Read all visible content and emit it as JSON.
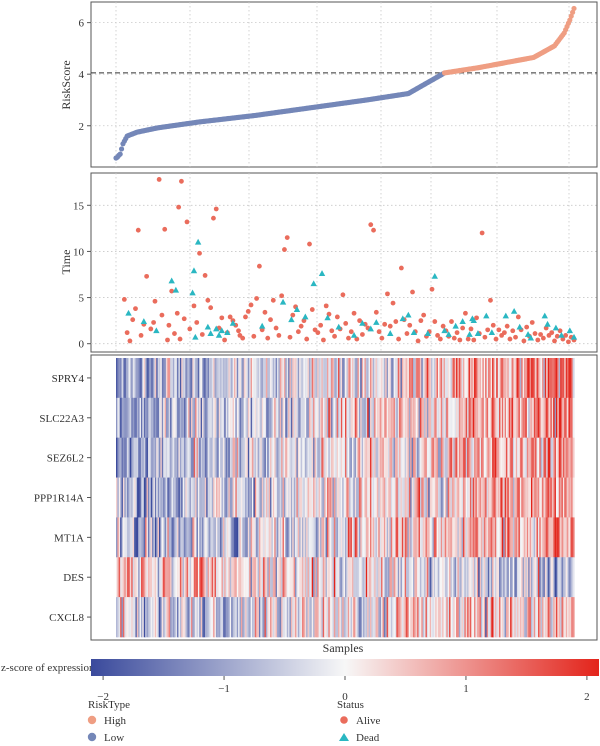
{
  "chart_data": [
    {
      "panel": "riskscore",
      "type": "scatter",
      "ylabel": "RiskScore",
      "yticks": [
        2,
        4,
        6
      ],
      "ylim": [
        0.4,
        6.8
      ],
      "cutoff": 4.05,
      "n_samples": 330,
      "cut_index": 236,
      "curve_knots": [
        [
          0,
          0.75
        ],
        [
          1,
          0.78
        ],
        [
          2,
          0.85
        ],
        [
          3,
          0.9
        ],
        [
          5,
          1.3
        ],
        [
          8,
          1.6
        ],
        [
          15,
          1.75
        ],
        [
          30,
          1.92
        ],
        [
          60,
          2.15
        ],
        [
          100,
          2.4
        ],
        [
          140,
          2.7
        ],
        [
          180,
          3.0
        ],
        [
          210,
          3.25
        ],
        [
          236,
          4.05
        ],
        [
          260,
          4.25
        ],
        [
          280,
          4.45
        ],
        [
          300,
          4.65
        ],
        [
          315,
          5.1
        ],
        [
          322,
          5.6
        ],
        [
          326,
          6.1
        ],
        [
          329,
          6.55
        ]
      ],
      "series": [
        {
          "name": "Low",
          "color": "#7487b8"
        },
        {
          "name": "High",
          "color": "#ef9e83"
        }
      ]
    },
    {
      "panel": "time",
      "type": "scatter",
      "ylabel": "Time",
      "yticks": [
        0,
        5,
        10,
        15
      ],
      "ylim": [
        -0.9,
        18.5
      ],
      "points": [
        [
          6,
          4.8
        ],
        [
          8,
          1.2
        ],
        [
          10,
          0.3
        ],
        [
          12,
          2.6
        ],
        [
          14,
          3.8
        ],
        [
          16,
          12.3
        ],
        [
          18,
          0.9
        ],
        [
          20,
          2.1
        ],
        [
          22,
          7.3
        ],
        [
          25,
          1.6
        ],
        [
          27,
          2.3
        ],
        [
          28,
          4.6
        ],
        [
          31,
          17.8
        ],
        [
          33,
          3.1
        ],
        [
          35,
          12.4
        ],
        [
          37,
          0.4
        ],
        [
          38,
          2.0
        ],
        [
          40,
          5.7
        ],
        [
          42,
          1.1
        ],
        [
          44,
          3.3
        ],
        [
          45,
          14.8
        ],
        [
          46,
          0.5
        ],
        [
          47,
          17.6
        ],
        [
          49,
          2.7
        ],
        [
          51,
          13.2
        ],
        [
          53,
          1.6
        ],
        [
          56,
          4.1
        ],
        [
          58,
          2.3
        ],
        [
          60,
          9.8
        ],
        [
          62,
          1.0
        ],
        [
          64,
          7.4
        ],
        [
          66,
          4.7
        ],
        [
          68,
          3.9
        ],
        [
          70,
          13.6
        ],
        [
          72,
          14.6
        ],
        [
          74,
          1.7
        ],
        [
          76,
          2.8
        ],
        [
          78,
          0.4
        ],
        [
          80,
          1.2
        ],
        [
          82,
          2.9
        ],
        [
          84,
          2.5
        ],
        [
          86,
          2.0
        ],
        [
          88,
          1.4
        ],
        [
          89,
          0.9
        ],
        [
          91,
          0.6
        ],
        [
          93,
          2.9
        ],
        [
          95,
          3.5
        ],
        [
          97,
          4.2
        ],
        [
          99,
          0.8
        ],
        [
          101,
          4.9
        ],
        [
          103,
          8.4
        ],
        [
          105,
          1.5
        ],
        [
          107,
          3.4
        ],
        [
          109,
          0.6
        ],
        [
          111,
          2.6
        ],
        [
          113,
          4.7
        ],
        [
          115,
          1.7
        ],
        [
          117,
          0.9
        ],
        [
          119,
          5.2
        ],
        [
          121,
          10.2
        ],
        [
          123,
          11.5
        ],
        [
          125,
          0.7
        ],
        [
          127,
          3.1
        ],
        [
          129,
          4.0
        ],
        [
          131,
          1.3
        ],
        [
          133,
          1.9
        ],
        [
          135,
          2.5
        ],
        [
          137,
          0.5
        ],
        [
          139,
          10.8
        ],
        [
          141,
          3.7
        ],
        [
          143,
          1.5
        ],
        [
          145,
          1.2
        ],
        [
          147,
          2.0
        ],
        [
          149,
          0.4
        ],
        [
          151,
          4.1
        ],
        [
          153,
          3.2
        ],
        [
          155,
          1.4
        ],
        [
          157,
          0.8
        ],
        [
          159,
          2.9
        ],
        [
          161,
          1.6
        ],
        [
          163,
          5.3
        ],
        [
          165,
          2.2
        ],
        [
          167,
          0.6
        ],
        [
          169,
          1.3
        ],
        [
          171,
          3.3
        ],
        [
          173,
          0.5
        ],
        [
          175,
          2.5
        ],
        [
          177,
          1.0
        ],
        [
          179,
          2.1
        ],
        [
          181,
          1.7
        ],
        [
          183,
          12.9
        ],
        [
          185,
          12.3
        ],
        [
          187,
          3.4
        ],
        [
          189,
          1.3
        ],
        [
          191,
          0.6
        ],
        [
          193,
          2.1
        ],
        [
          195,
          5.4
        ],
        [
          197,
          1.9
        ],
        [
          199,
          4.4
        ],
        [
          201,
          2.4
        ],
        [
          203,
          0.5
        ],
        [
          205,
          8.2
        ],
        [
          207,
          2.6
        ],
        [
          209,
          1.1
        ],
        [
          211,
          2.0
        ],
        [
          213,
          5.6
        ],
        [
          215,
          1.3
        ],
        [
          217,
          0.3
        ],
        [
          219,
          2.5
        ],
        [
          221,
          3.1
        ],
        [
          223,
          0.8
        ],
        [
          225,
          1.3
        ],
        [
          227,
          5.9
        ],
        [
          229,
          2.4
        ],
        [
          231,
          0.9
        ],
        [
          233,
          0.5
        ],
        [
          235,
          1.9
        ],
        [
          237,
          1.4
        ],
        [
          239,
          0.8
        ],
        [
          241,
          2.4
        ],
        [
          243,
          0.6
        ],
        [
          245,
          1.2
        ],
        [
          247,
          0.4
        ],
        [
          249,
          1.7
        ],
        [
          251,
          3.3
        ],
        [
          253,
          0.5
        ],
        [
          255,
          1.6
        ],
        [
          257,
          0.4
        ],
        [
          259,
          2.8
        ],
        [
          261,
          1.1
        ],
        [
          263,
          12.0
        ],
        [
          265,
          0.7
        ],
        [
          267,
          1.5
        ],
        [
          269,
          4.7
        ],
        [
          271,
          2.0
        ],
        [
          273,
          0.5
        ],
        [
          275,
          1.5
        ],
        [
          277,
          0.9
        ],
        [
          279,
          1.2
        ],
        [
          281,
          1.9
        ],
        [
          283,
          0.5
        ],
        [
          285,
          1.4
        ],
        [
          287,
          0.7
        ],
        [
          289,
          2.9
        ],
        [
          291,
          1.5
        ],
        [
          293,
          0.3
        ],
        [
          295,
          1.8
        ],
        [
          297,
          0.8
        ],
        [
          299,
          2.3
        ],
        [
          301,
          1.1
        ],
        [
          303,
          0.4
        ],
        [
          305,
          1.0
        ],
        [
          307,
          0.6
        ],
        [
          309,
          1.7
        ],
        [
          311,
          0.9
        ],
        [
          313,
          1.2
        ],
        [
          315,
          0.3
        ],
        [
          317,
          0.8
        ],
        [
          319,
          1.4
        ],
        [
          321,
          0.5
        ],
        [
          323,
          0.9
        ],
        [
          325,
          0.2
        ],
        [
          327,
          0.7
        ],
        [
          329,
          0.4
        ]
      ],
      "dead": [
        [
          9,
          3.3
        ],
        [
          20,
          2.4
        ],
        [
          29,
          1.4
        ],
        [
          40,
          6.8
        ],
        [
          43,
          5.8
        ],
        [
          55,
          5.5
        ],
        [
          56,
          7.9
        ],
        [
          57,
          0.7
        ],
        [
          59,
          11.0
        ],
        [
          66,
          1.8
        ],
        [
          68,
          1.1
        ],
        [
          72,
          1.6
        ],
        [
          74,
          0.9
        ],
        [
          76,
          1.4
        ],
        [
          80,
          1.2
        ],
        [
          84,
          2.2
        ],
        [
          105,
          1.9
        ],
        [
          120,
          4.5
        ],
        [
          126,
          2.6
        ],
        [
          130,
          3.7
        ],
        [
          136,
          2.9
        ],
        [
          142,
          6.5
        ],
        [
          148,
          7.6
        ],
        [
          152,
          2.8
        ],
        [
          160,
          1.8
        ],
        [
          171,
          0.9
        ],
        [
          177,
          2.2
        ],
        [
          183,
          1.6
        ],
        [
          187,
          2.3
        ],
        [
          197,
          1.1
        ],
        [
          206,
          2.7
        ],
        [
          210,
          3.1
        ],
        [
          214,
          1.2
        ],
        [
          224,
          1.1
        ],
        [
          229,
          7.3
        ],
        [
          236,
          1.4
        ],
        [
          239,
          1.0
        ],
        [
          244,
          1.9
        ],
        [
          249,
          2.4
        ],
        [
          254,
          1.0
        ],
        [
          256,
          2.7
        ],
        [
          257,
          2.5
        ],
        [
          260,
          1.1
        ],
        [
          266,
          3.0
        ],
        [
          270,
          1.2
        ],
        [
          280,
          3.0
        ],
        [
          286,
          3.5
        ],
        [
          290,
          1.8
        ],
        [
          296,
          1.0
        ],
        [
          298,
          0.6
        ],
        [
          308,
          3.0
        ],
        [
          310,
          2.1
        ],
        [
          316,
          1.7
        ],
        [
          320,
          0.9
        ],
        [
          326,
          1.4
        ],
        [
          329,
          0.7
        ]
      ],
      "series": [
        {
          "name": "Alive",
          "color": "#ea6c5c"
        },
        {
          "name": "Dead",
          "color": "#2ab7c2"
        }
      ]
    },
    {
      "panel": "heatmap",
      "type": "heatmap",
      "xlabel": "Samples",
      "genes": [
        "SPRY4",
        "SLC22A3",
        "SEZ6L2",
        "PPP1R14A",
        "MT1A",
        "DES",
        "CXCL8"
      ],
      "gene_trend": [
        1,
        0.85,
        0.95,
        0.8,
        0.7,
        -0.55,
        0.55
      ],
      "seed": 20240607,
      "legend_title": "z-score of expression",
      "color_ticks": [
        -2,
        -1,
        0,
        1,
        2
      ],
      "color_range": [
        -2.1,
        2.1
      ],
      "colors": {
        "low": "#3a4a9c",
        "mid": "#f7f7f7",
        "high": "#e3241b"
      }
    }
  ],
  "legend": {
    "risktype_title": "RiskType",
    "risktype_items": [
      {
        "label": "High",
        "color": "#ef9e83"
      },
      {
        "label": "Low",
        "color": "#7487b8"
      }
    ],
    "status_title": "Status",
    "status_items": [
      {
        "label": "Alive",
        "color": "#ea6c5c"
      },
      {
        "label": "Dead",
        "color": "#2ab7c2"
      }
    ]
  }
}
